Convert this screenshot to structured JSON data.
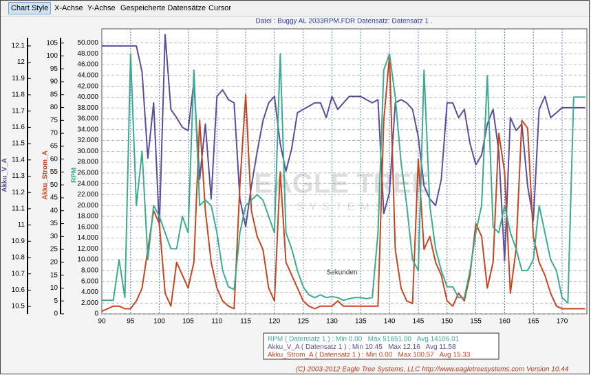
{
  "menu": [
    "Chart Style",
    "X-Achse",
    "Y-Achse",
    "Gespeicherte Datensätze",
    "Cursor"
  ],
  "chart_data": {
    "type": "line",
    "title": "Datei : Buggy AL 2033RPM.FDR    Datensatz: Datensatz 1 .",
    "x_label": "Sekunden",
    "watermark": [
      "EAGLE TREE",
      "SYSTEMS"
    ],
    "xlim": [
      90,
      174.3
    ],
    "xticks": [
      90,
      95,
      100,
      105,
      110,
      115,
      120,
      125,
      130,
      135,
      140,
      145,
      150,
      155,
      160,
      165,
      170
    ],
    "ylim": [
      0,
      52600
    ],
    "yticks": [
      0,
      {
        "value": 2000,
        "label": "2.000"
      },
      {
        "value": 4000,
        "label": "4.000"
      },
      {
        "value": 6000,
        "label": "6.000"
      },
      {
        "value": 8000,
        "label": "8.000"
      },
      {
        "value": 10000,
        "label": "10.000"
      },
      {
        "value": 12000,
        "label": "12.000"
      },
      {
        "value": 14000,
        "label": "14.000"
      },
      {
        "value": 16000,
        "label": "16.000"
      },
      {
        "value": 18000,
        "label": "18.000"
      },
      {
        "value": 20000,
        "label": "20.000"
      },
      {
        "value": 22000,
        "label": "22.000"
      },
      {
        "value": 24000,
        "label": "24.000"
      },
      {
        "value": 26000,
        "label": "26.000"
      },
      {
        "value": 28000,
        "label": "28.000"
      },
      {
        "value": 30000,
        "label": "30.000"
      },
      {
        "value": 32000,
        "label": "32.000"
      },
      {
        "value": 34000,
        "label": "34.000"
      },
      {
        "value": 36000,
        "label": "36.000"
      },
      {
        "value": 38000,
        "label": "38.000"
      },
      {
        "value": 40000,
        "label": "40.000"
      },
      {
        "value": 42000,
        "label": "42.000"
      },
      {
        "value": 44000,
        "label": "44.000"
      },
      {
        "value": 46000,
        "label": "46.000"
      },
      {
        "value": 48000,
        "label": "48.000"
      },
      {
        "value": 50000,
        "label": "50.000"
      }
    ],
    "y2lim": [
      0,
      110.5
    ],
    "y2ticks": [
      0,
      5,
      10,
      15,
      20,
      25,
      30,
      35,
      40,
      45,
      50,
      55,
      60,
      65,
      70,
      75,
      80,
      85,
      90,
      95,
      100,
      105
    ],
    "y3lim": [
      10.454,
      12.205
    ],
    "y3ticks": [
      10.5,
      10.6,
      10.7,
      10.8,
      10.9,
      11,
      11.1,
      11.2,
      11.3,
      11.4,
      11.5,
      11.6,
      11.7,
      11.8,
      11.9,
      12,
      12.1
    ],
    "grid": true,
    "x": [
      90,
      91,
      92,
      93,
      94,
      95,
      96,
      97,
      98,
      99,
      100,
      101,
      102,
      103,
      104,
      105,
      106,
      107,
      108,
      109,
      110,
      111,
      112,
      113,
      114,
      115,
      116,
      117,
      118,
      119,
      120,
      121,
      122,
      123,
      124,
      125,
      126,
      127,
      128,
      129,
      130,
      131,
      132,
      133,
      134,
      135,
      136,
      137,
      138,
      139,
      140,
      141,
      142,
      143,
      144,
      145,
      146,
      147,
      148,
      149,
      150,
      151,
      152,
      153,
      154,
      155,
      156,
      157,
      158,
      159,
      160,
      161,
      162,
      163,
      164,
      165,
      166,
      167,
      168,
      169,
      170,
      171,
      172,
      173,
      174
    ],
    "series": [
      {
        "name": "RPM",
        "color": "#3aab8f",
        "axis": "y",
        "stats": "RPM ( Datensatz 1 ) : Min 0.00   Max 51651.00   Avg 14106.01",
        "values": [
          2500,
          2500,
          2500,
          10000,
          3000,
          48000,
          20000,
          30000,
          10000,
          20000,
          18000,
          15000,
          12000,
          12000,
          18000,
          15000,
          45000,
          20000,
          21000,
          20000,
          15000,
          8000,
          5000,
          4500,
          15000,
          20000,
          21000,
          22000,
          21000,
          18000,
          15000,
          48000,
          15000,
          12000,
          8000,
          5000,
          3500,
          3000,
          3500,
          3000,
          3200,
          3000,
          2500,
          2800,
          3000,
          3000,
          2800,
          3000,
          15000,
          45000,
          48000,
          40000,
          28000,
          20000,
          10000,
          8000,
          45000,
          20000,
          12000,
          8000,
          5000,
          5000,
          3000,
          3000,
          8000,
          15000,
          20000,
          44000,
          16000,
          15000,
          20000,
          15000,
          12000,
          8000,
          8000,
          10000,
          20000,
          15000,
          10000,
          8000,
          3000,
          2000,
          40000,
          40000,
          40000
        ]
      },
      {
        "name": "Akku_V_A",
        "color": "#5a4d9e",
        "axis": "y3",
        "stats": "Akku_V_A ( Datensatz 1 ) : Min 10.45   Max 12.16   Avg 11.58",
        "values": [
          12.1,
          12.1,
          12.1,
          12.1,
          12.1,
          12.1,
          12.1,
          11.94,
          11.41,
          11.75,
          10.99,
          12.17,
          11.71,
          11.66,
          11.6,
          11.58,
          11.88,
          11.28,
          11.62,
          11.16,
          11.79,
          11.83,
          11.77,
          11.75,
          11.16,
          10.99,
          11.24,
          11.45,
          11.64,
          11.75,
          11.79,
          11.5,
          11.33,
          11.47,
          11.69,
          11.71,
          11.73,
          11.75,
          11.75,
          11.66,
          11.79,
          11.71,
          11.75,
          11.79,
          11.79,
          11.79,
          11.77,
          11.75,
          11.77,
          11.07,
          11.2,
          11.75,
          11.77,
          11.75,
          11.71,
          11.54,
          11.24,
          11.16,
          11.12,
          11.28,
          11.75,
          11.75,
          11.66,
          11.71,
          11.5,
          11.37,
          11.43,
          11.62,
          11.71,
          11.45,
          10.78,
          11.66,
          11.58,
          11.62,
          11.24,
          11.03,
          11.71,
          11.79,
          11.66,
          11.69,
          11.72,
          11.72,
          11.72,
          11.72,
          11.72
        ]
      },
      {
        "name": "Akku_Strom_A",
        "color": "#c7441f",
        "axis": "y2",
        "stats": "Akku_Strom_A ( Datensatz 1 ) : Min 0.00   Max 100.57   Avg 15.33",
        "values": [
          1,
          2,
          3,
          3,
          2,
          2,
          5,
          10,
          25,
          40,
          35,
          8,
          3,
          20,
          15,
          10,
          20,
          75,
          40,
          20,
          10,
          5,
          3,
          2,
          50,
          85,
          40,
          30,
          25,
          10,
          5,
          55,
          20,
          15,
          10,
          5,
          3,
          2,
          3,
          3,
          3,
          5,
          3,
          3,
          3,
          3,
          3,
          3,
          3,
          75,
          100,
          25,
          10,
          5,
          4,
          60,
          25,
          30,
          20,
          15,
          5,
          3,
          8,
          5,
          15,
          35,
          30,
          10,
          20,
          70,
          55,
          8,
          25,
          75,
          72,
          30,
          20,
          15,
          8,
          3,
          2,
          2,
          2,
          2,
          2
        ]
      }
    ]
  },
  "footer": "(C) 2003-2012 Eagle Tree Systems, LLC  http://www.eagletreesystems.com  Version 10.44"
}
